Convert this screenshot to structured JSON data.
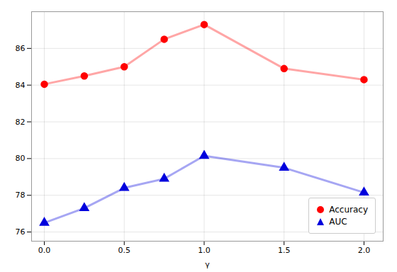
{
  "chart_data": {
    "type": "line",
    "x": [
      0.0,
      0.25,
      0.5,
      0.75,
      1.0,
      1.5,
      2.0
    ],
    "series": [
      {
        "name": "Accuracy",
        "color": "#ff0000",
        "marker": "circle",
        "values": [
          84.05,
          84.5,
          85.0,
          86.5,
          87.3,
          84.9,
          84.3
        ]
      },
      {
        "name": "AUC",
        "color": "#0000dd",
        "marker": "triangle",
        "values": [
          76.5,
          77.3,
          78.4,
          78.9,
          80.15,
          79.5,
          78.15
        ]
      }
    ],
    "xlabel": "γ",
    "xlim": [
      -0.08,
      2.12
    ],
    "xticks": [
      {
        "value": 0.0,
        "label": "0.0"
      },
      0.5,
      {
        "value": 1.0,
        "label": "1.0"
      },
      1.5,
      {
        "value": 2.0,
        "label": "2.0"
      }
    ],
    "ylim": [
      75.5,
      88.0
    ],
    "yticks": [
      76,
      78,
      80,
      82,
      84,
      86
    ],
    "grid": true,
    "legend": "lower right"
  }
}
